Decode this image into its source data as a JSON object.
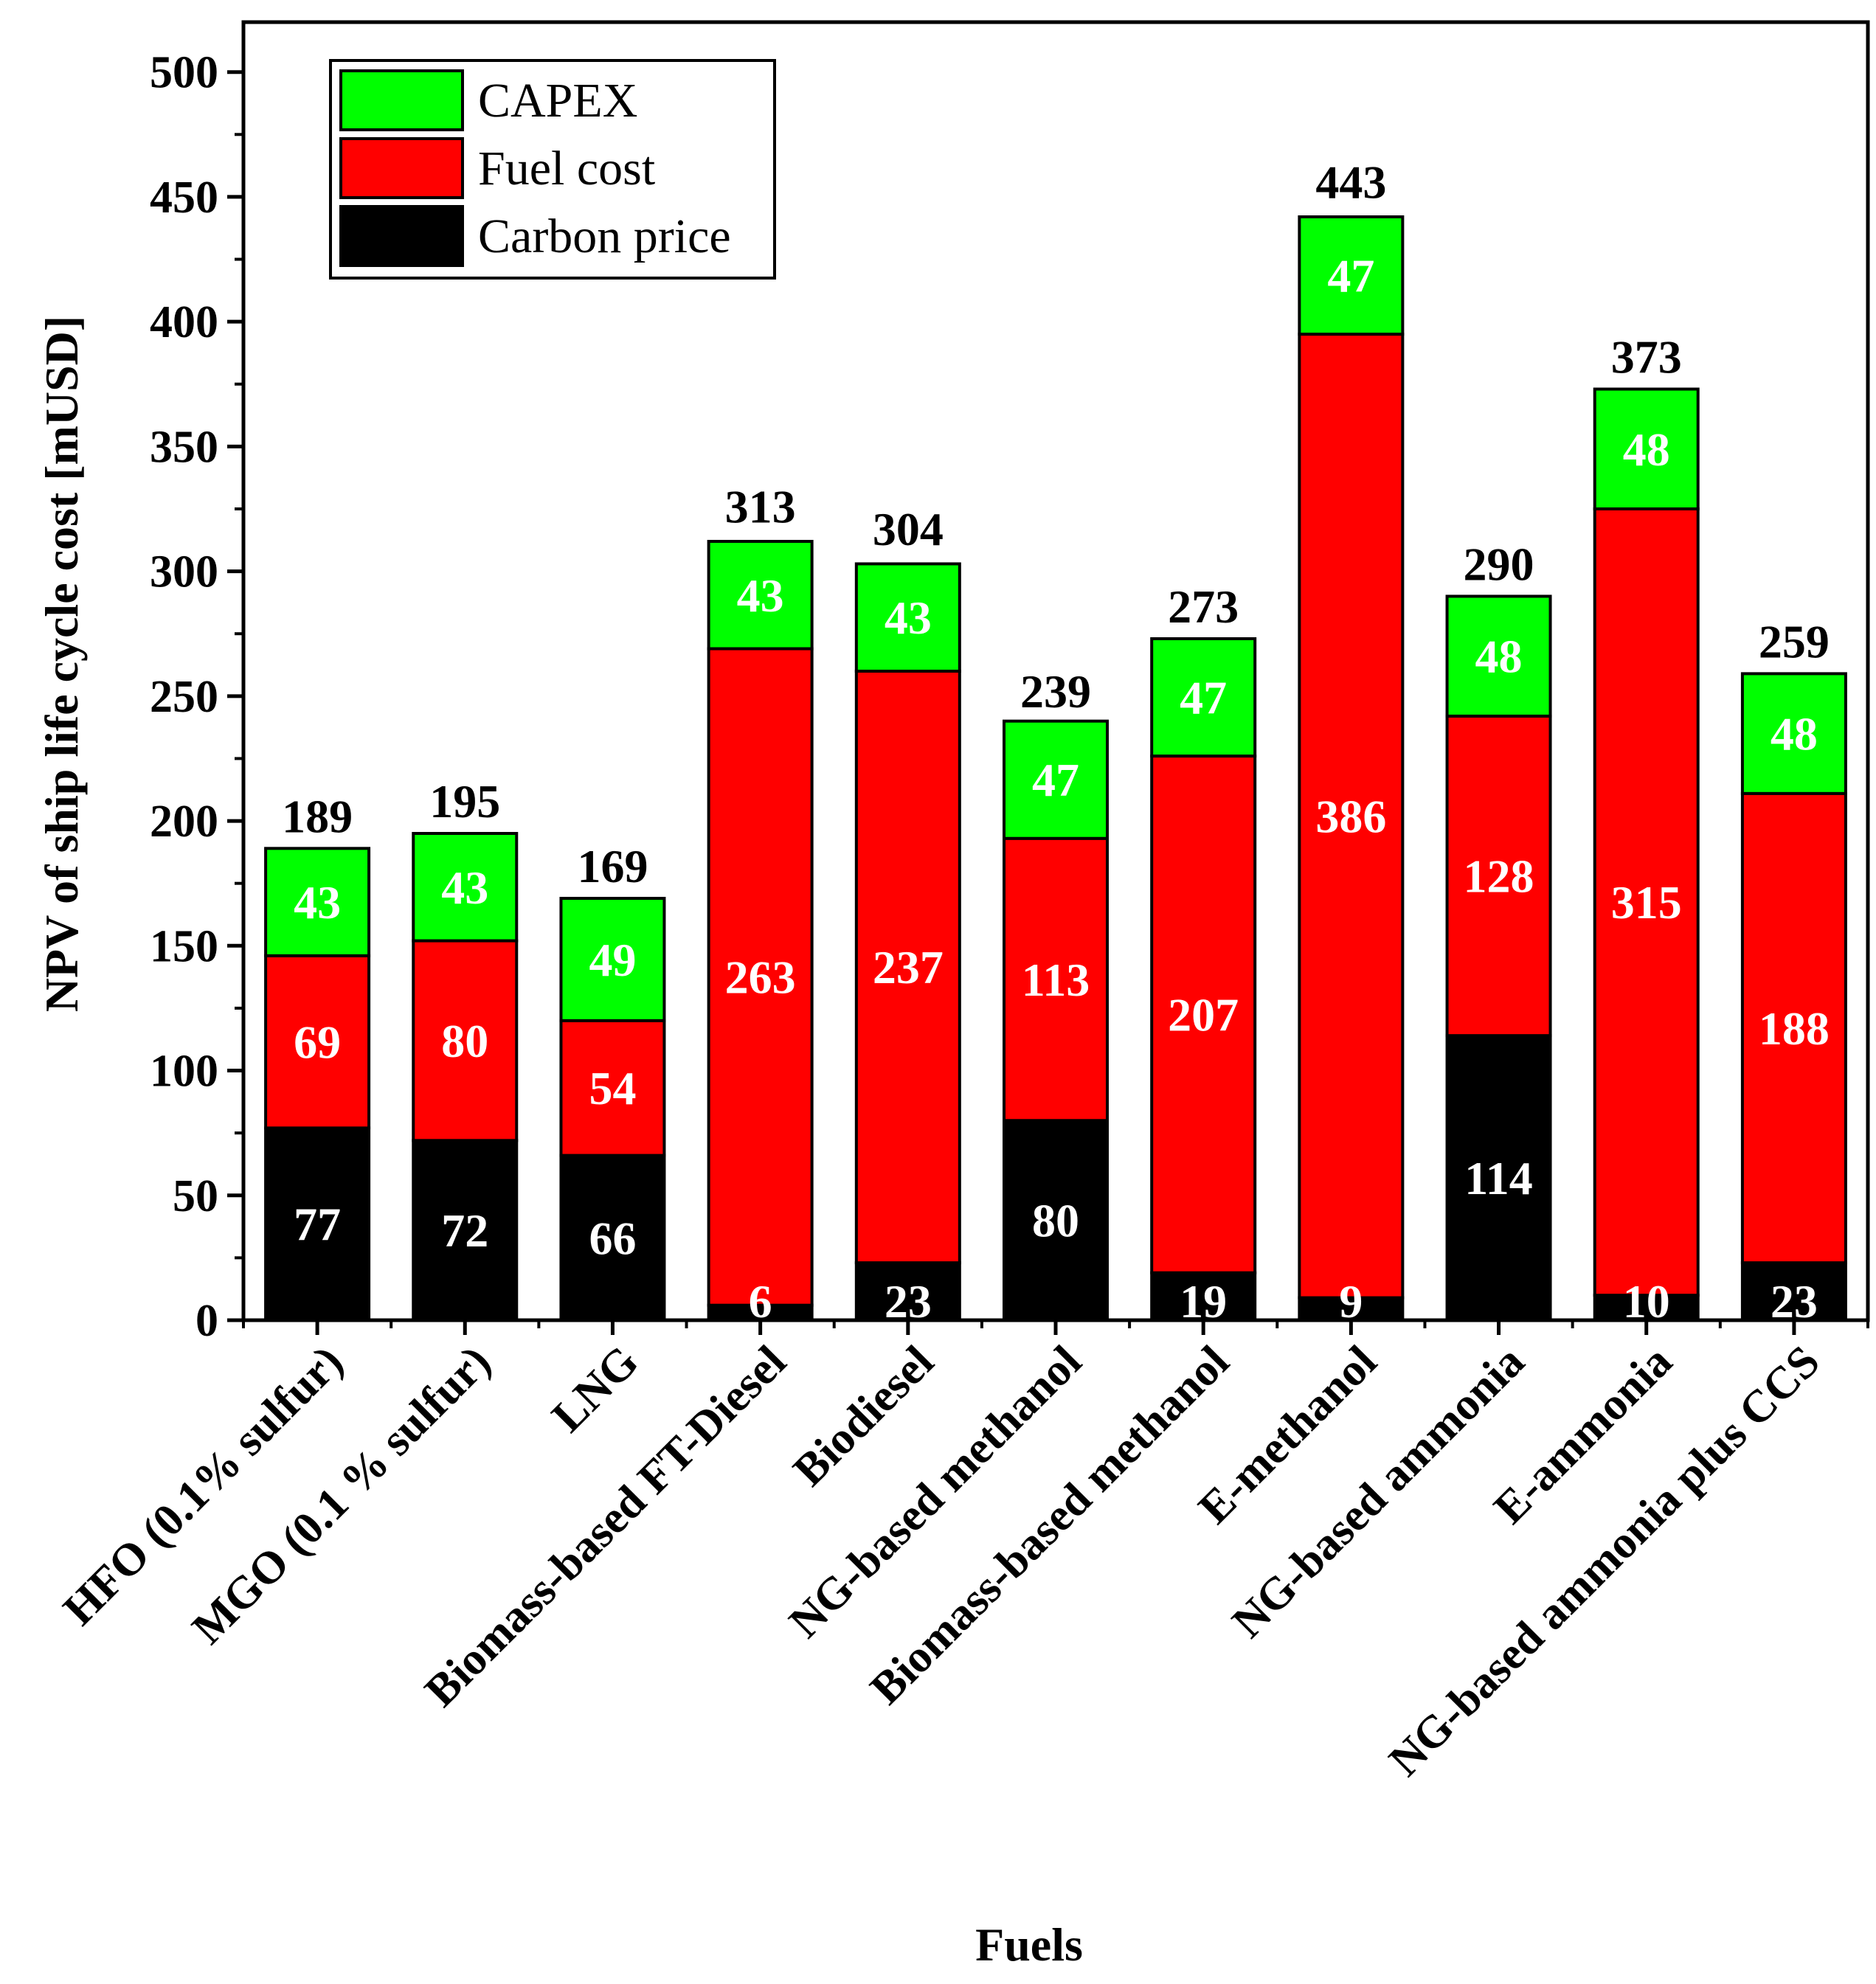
{
  "chart_data": {
    "type": "bar",
    "stacked": true,
    "title": "",
    "xlabel": "Fuels",
    "ylabel": "NPV of ship life cycle cost [mUSD]",
    "ylim": [
      0,
      500
    ],
    "yticks": [
      0,
      50,
      100,
      150,
      200,
      250,
      300,
      350,
      400,
      450,
      500
    ],
    "categories": [
      "HFO (0.1% sulfur)",
      "MGO (0.1 % sulfur)",
      "LNG",
      "Biomass-based FT-Diesel",
      "Biodiesel",
      "NG-based methanol",
      "Biomass-based methanol",
      "E-methanol",
      "NG-based ammonia",
      "E-ammonia",
      "NG-based ammonia plus CCS"
    ],
    "series": [
      {
        "name": "Carbon price",
        "color": "#000000",
        "values": [
          77,
          72,
          66,
          6,
          23,
          80,
          19,
          9,
          114,
          10,
          23
        ]
      },
      {
        "name": "Fuel cost",
        "color": "#ff0000",
        "values": [
          69,
          80,
          54,
          263,
          237,
          113,
          207,
          386,
          128,
          315,
          188
        ]
      },
      {
        "name": "CAPEX",
        "color": "#00ff00",
        "values": [
          43,
          43,
          49,
          43,
          43,
          47,
          47,
          47,
          48,
          48,
          48
        ]
      }
    ],
    "totals": [
      189,
      195,
      169,
      313,
      304,
      239,
      273,
      443,
      290,
      373,
      259
    ],
    "legend": {
      "position": "top-left",
      "entries": [
        "CAPEX",
        "Fuel cost",
        "Carbon price"
      ]
    }
  }
}
